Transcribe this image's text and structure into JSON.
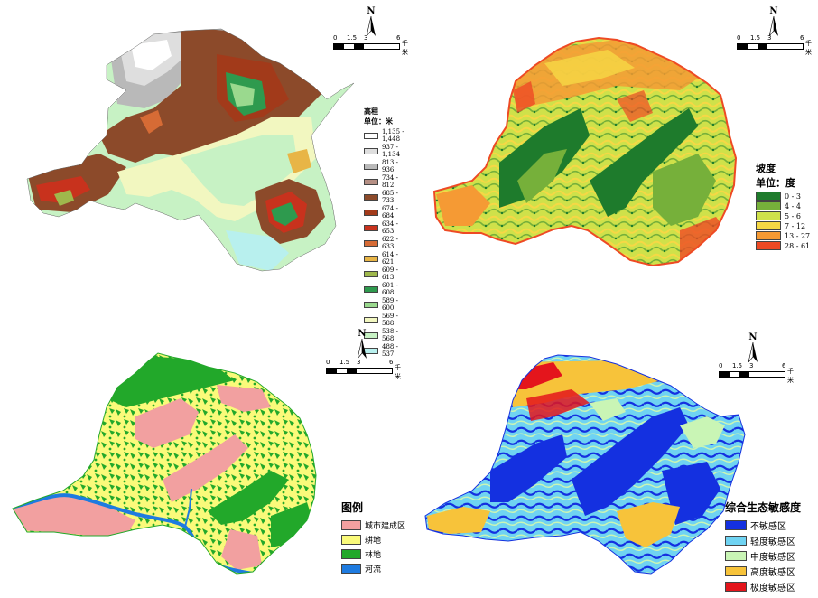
{
  "north_label": "N",
  "scale": {
    "ticks": [
      "0",
      "1.5",
      "3",
      "6"
    ],
    "unit": "千米"
  },
  "maps": [
    {
      "id": "elevation",
      "legend": {
        "title": "高程",
        "unit": "单位：米",
        "items": [
          {
            "label": "1,135 - 1,448",
            "color": "#ffffff"
          },
          {
            "label": "937 - 1,134",
            "color": "#dedede"
          },
          {
            "label": "813 - 936",
            "color": "#b9b9b9"
          },
          {
            "label": "734 - 812",
            "color": "#b58f84"
          },
          {
            "label": "685 - 733",
            "color": "#8c4a2a"
          },
          {
            "label": "674 - 684",
            "color": "#a23a1a"
          },
          {
            "label": "634 - 653",
            "color": "#c8321d"
          },
          {
            "label": "622 - 633",
            "color": "#d66b35"
          },
          {
            "label": "614 - 621",
            "color": "#e8b546"
          },
          {
            "label": "609 - 613",
            "color": "#9fb84c"
          },
          {
            "label": "601 - 608",
            "color": "#2e9a4e"
          },
          {
            "label": "589 - 600",
            "color": "#9ad98e"
          },
          {
            "label": "569 - 588",
            "color": "#f2f7c0"
          },
          {
            "label": "538 - 568",
            "color": "#c7f2c4"
          },
          {
            "label": "488 - 537",
            "color": "#b8f0ee"
          }
        ]
      }
    },
    {
      "id": "slope",
      "legend": {
        "title": "坡度",
        "unit": "单位：度",
        "items": [
          {
            "label": "0 - 3",
            "color": "#1e7b2c"
          },
          {
            "label": "4 - 4",
            "color": "#76b03a"
          },
          {
            "label": "5 - 6",
            "color": "#cfe14a"
          },
          {
            "label": "7 - 12",
            "color": "#f6d845"
          },
          {
            "label": "13 - 27",
            "color": "#f59a34"
          },
          {
            "label": "28 - 61",
            "color": "#ee4a24"
          }
        ]
      }
    },
    {
      "id": "landuse",
      "legend": {
        "title": "图例",
        "items": [
          {
            "label": "城市建成区",
            "color": "#f2a0a0"
          },
          {
            "label": "耕地",
            "color": "#fafa7a"
          },
          {
            "label": "林地",
            "color": "#22a82a"
          },
          {
            "label": "河流",
            "color": "#1e7be0"
          }
        ]
      }
    },
    {
      "id": "sensitivity",
      "legend": {
        "title": "综合生态敏感度",
        "items": [
          {
            "label": "不敏感区",
            "color": "#1430e0"
          },
          {
            "label": "轻度敏感区",
            "color": "#6fd3f2"
          },
          {
            "label": "中度敏感区",
            "color": "#c9f5b5"
          },
          {
            "label": "高度敏感区",
            "color": "#f7c33a"
          },
          {
            "label": "极度敏感区",
            "color": "#e4151c"
          }
        ]
      }
    }
  ]
}
